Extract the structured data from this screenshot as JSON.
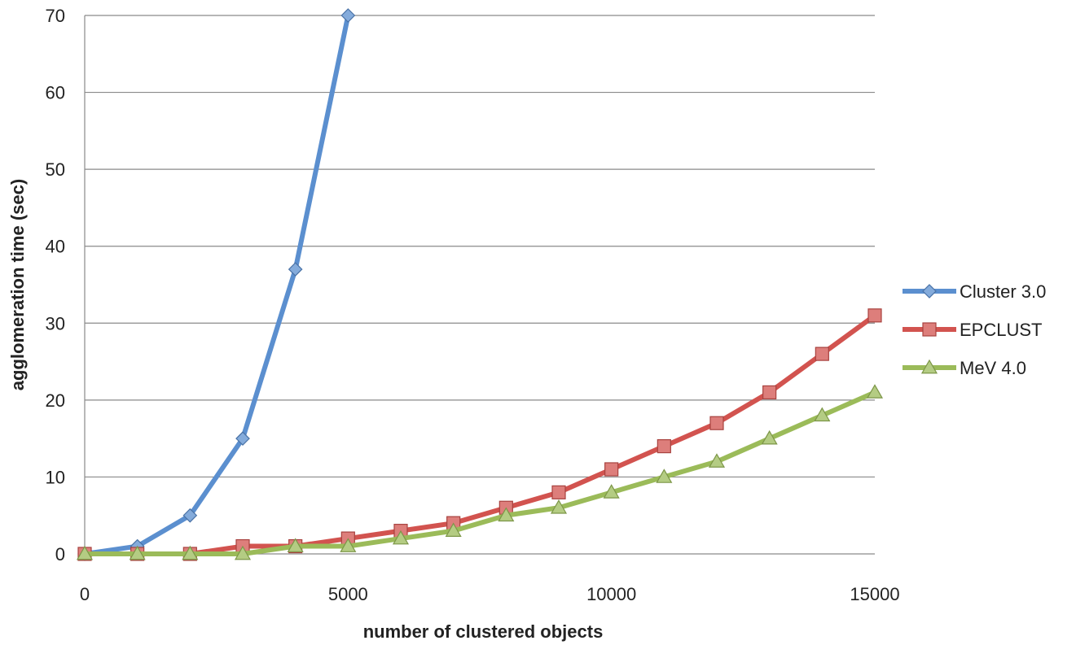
{
  "chart_data": {
    "type": "line",
    "title": "",
    "xlabel": "number of clustered objects",
    "ylabel": "agglomeration time (sec)",
    "xlim": [
      0,
      15000
    ],
    "ylim": [
      0,
      70
    ],
    "x_ticks": [
      "0",
      "5000",
      "10000",
      "15000"
    ],
    "y_ticks": [
      "0",
      "10",
      "20",
      "30",
      "40",
      "50",
      "60",
      "70"
    ],
    "grid": "horizontal",
    "legend_position": "right",
    "series": [
      {
        "name": "Cluster 3.0",
        "color": "#5b8fcf",
        "marker": "diamond",
        "x": [
          0,
          1000,
          2000,
          3000,
          4000,
          5000
        ],
        "y": [
          0,
          1,
          5,
          15,
          37,
          70
        ]
      },
      {
        "name": "EPCLUST",
        "color": "#d2534f",
        "marker": "square",
        "x": [
          0,
          1000,
          2000,
          3000,
          4000,
          5000,
          6000,
          7000,
          8000,
          9000,
          10000,
          11000,
          12000,
          13000,
          14000,
          15000
        ],
        "y": [
          0,
          0,
          0,
          1,
          1,
          2,
          3,
          4,
          6,
          8,
          11,
          14,
          17,
          21,
          26,
          31
        ]
      },
      {
        "name": "MeV 4.0",
        "color": "#9bbb59",
        "marker": "triangle",
        "x": [
          0,
          1000,
          2000,
          3000,
          4000,
          5000,
          6000,
          7000,
          8000,
          9000,
          10000,
          11000,
          12000,
          13000,
          14000,
          15000
        ],
        "y": [
          0,
          0,
          0,
          0,
          1,
          1,
          2,
          3,
          5,
          6,
          8,
          10,
          12,
          15,
          18,
          21
        ]
      }
    ]
  }
}
